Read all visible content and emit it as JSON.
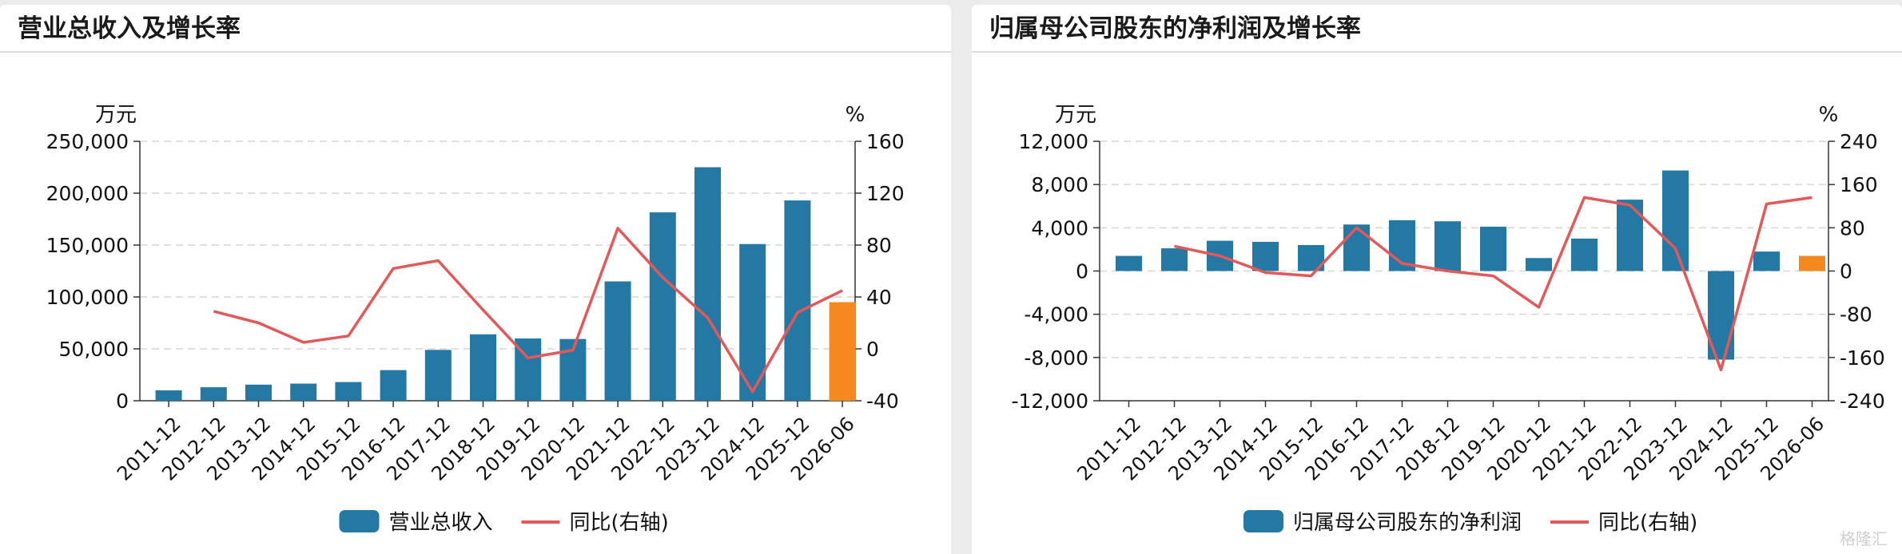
{
  "watermark": "格隆汇",
  "colors": {
    "bar": "#2478a4",
    "bar_forecast": "#f5891f",
    "line": "#e2595a",
    "grid": "#d6d6d6",
    "axis": "#333333"
  },
  "chart_data": [
    {
      "type": "bar",
      "title": "营业总收入及增长率",
      "left_unit": "万元",
      "right_unit": "%",
      "categories": [
        "2011-12",
        "2012-12",
        "2013-12",
        "2014-12",
        "2015-12",
        "2016-12",
        "2017-12",
        "2018-12",
        "2019-12",
        "2020-12",
        "2021-12",
        "2022-12",
        "2023-12",
        "2024-12",
        "2025-12",
        "2026-06"
      ],
      "series": [
        {
          "name": "营业总收入",
          "type": "bar",
          "axis": "left",
          "values": [
            10000,
            13000,
            15500,
            16500,
            18000,
            29500,
            49000,
            64000,
            60000,
            59500,
            115000,
            181500,
            225000,
            151000,
            193000,
            95000
          ],
          "highlight_last": true
        },
        {
          "name": "同比(右轴)",
          "type": "line",
          "axis": "right",
          "values": [
            null,
            29,
            20,
            5,
            10,
            62,
            68,
            30,
            -7,
            -1,
            93,
            55,
            24,
            -33,
            28,
            45
          ]
        }
      ],
      "left_axis": {
        "min": 0,
        "max": 250000,
        "ticks": [
          "0",
          "50,000",
          "100,000",
          "150,000",
          "200,000",
          "250,000"
        ]
      },
      "right_axis": {
        "min": -40,
        "max": 160,
        "ticks": [
          "-40",
          "0",
          "40",
          "80",
          "120",
          "160"
        ]
      },
      "legend": [
        "营业总收入",
        "同比(右轴)"
      ],
      "legend_position": "bottom",
      "grid": true
    },
    {
      "type": "bar",
      "title": "归属母公司股东的净利润及增长率",
      "left_unit": "万元",
      "right_unit": "%",
      "categories": [
        "2011-12",
        "2012-12",
        "2013-12",
        "2014-12",
        "2015-12",
        "2016-12",
        "2017-12",
        "2018-12",
        "2019-12",
        "2020-12",
        "2021-12",
        "2022-12",
        "2023-12",
        "2024-12",
        "2025-12",
        "2026-06"
      ],
      "series": [
        {
          "name": "归属母公司股东的净利润",
          "type": "bar",
          "axis": "left",
          "values": [
            1400,
            2100,
            2800,
            2700,
            2400,
            4300,
            4700,
            4600,
            4100,
            1200,
            3000,
            6600,
            9300,
            -8200,
            1800,
            1400
          ],
          "highlight_last": true
        },
        {
          "name": "同比(右轴)",
          "type": "line",
          "axis": "right",
          "values": [
            null,
            46,
            28,
            -3,
            -9,
            80,
            14,
            0,
            -9,
            -67,
            136,
            122,
            42,
            -183,
            124,
            136
          ]
        }
      ],
      "left_axis": {
        "min": -12000,
        "max": 12000,
        "ticks": [
          "-12,000",
          "-8,000",
          "-4,000",
          "0",
          "4,000",
          "8,000",
          "12,000"
        ]
      },
      "right_axis": {
        "min": -240,
        "max": 240,
        "ticks": [
          "-240",
          "-160",
          "-80",
          "0",
          "80",
          "160",
          "240"
        ]
      },
      "legend": [
        "归属母公司股东的净利润",
        "同比(右轴)"
      ],
      "legend_position": "bottom",
      "grid": true
    }
  ]
}
